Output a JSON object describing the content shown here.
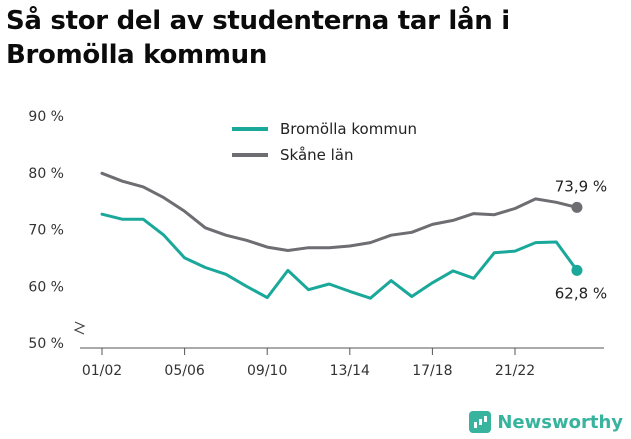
{
  "title": "Så stor del av studenterna tar lån i Bromölla kommun",
  "brand": {
    "name": "Newsworthy",
    "icon": "bar-chart-icon",
    "color": "#37b39e"
  },
  "chart_data": {
    "type": "line",
    "categories": [
      "01/02",
      "02/03",
      "03/04",
      "04/05",
      "05/06",
      "06/07",
      "07/08",
      "08/09",
      "09/10",
      "10/11",
      "11/12",
      "12/13",
      "13/14",
      "14/15",
      "15/16",
      "16/17",
      "17/18",
      "18/19",
      "19/20",
      "20/21",
      "21/22",
      "22/23",
      "23/24",
      "24/25"
    ],
    "xtick_labels": [
      "01/02",
      "05/06",
      "09/10",
      "13/14",
      "17/18",
      "21/22"
    ],
    "ytick_labels": [
      "50 %",
      "60 %",
      "70 %",
      "80 %",
      "90 %"
    ],
    "ylim": [
      50,
      90
    ],
    "y_axis_break": true,
    "grid": false,
    "legend_position": "top-center",
    "series": [
      {
        "name": "Bromölla kommun",
        "color": "#1aa89a",
        "values": [
          72.7,
          71.8,
          71.8,
          69.0,
          65.0,
          63.3,
          62.1,
          60.0,
          58.0,
          62.8,
          59.4,
          60.4,
          59.1,
          57.9,
          61.0,
          58.2,
          60.6,
          62.7,
          61.4,
          65.9,
          66.2,
          67.7,
          67.8,
          62.8
        ],
        "end_label": "62,8 %"
      },
      {
        "name": "Skåne län",
        "color": "#6d6d72",
        "values": [
          79.9,
          78.5,
          77.5,
          75.6,
          73.2,
          70.3,
          69.0,
          68.1,
          66.9,
          66.3,
          66.8,
          66.8,
          67.1,
          67.7,
          69.0,
          69.5,
          70.9,
          71.6,
          72.8,
          72.6,
          73.7,
          75.4,
          74.8,
          73.9
        ],
        "end_label": "73,9 %"
      }
    ]
  }
}
